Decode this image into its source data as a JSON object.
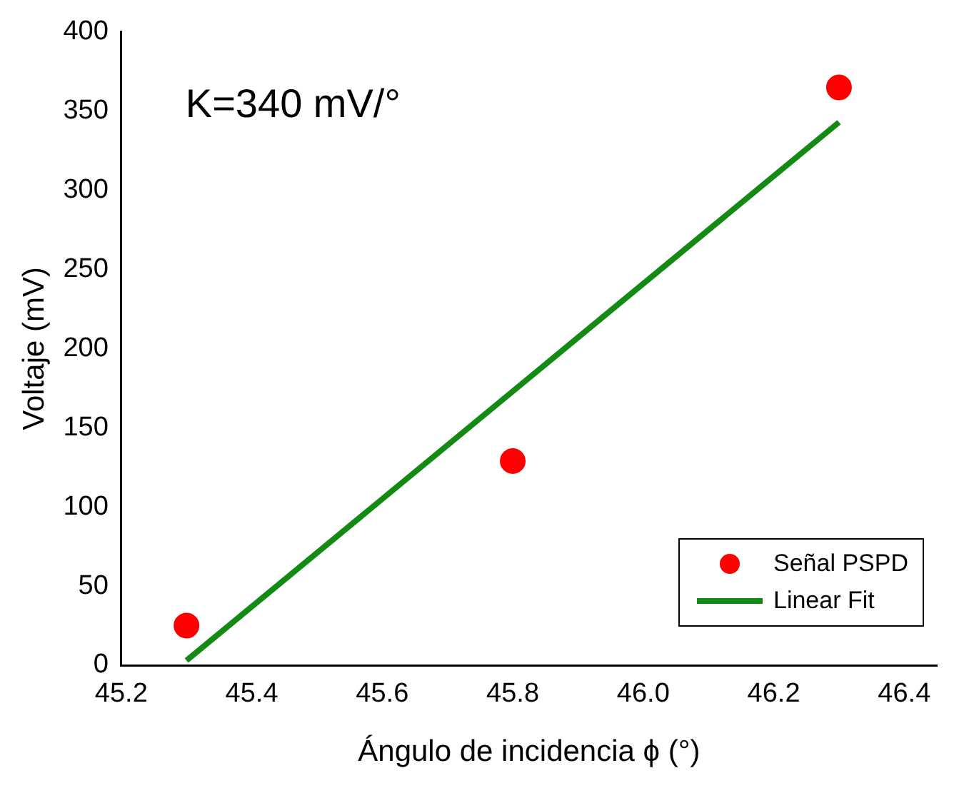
{
  "chart_data": {
    "type": "scatter",
    "xlabel": "Ángulo de incidencia ϕ (°)",
    "ylabel": "Voltaje (mV)",
    "annotations": [
      "K=340 mV/°"
    ],
    "series": [
      {
        "name": "Señal PSPD",
        "color": "#ff0000",
        "marker": "circle",
        "x": [
          45.3,
          45.8,
          46.3
        ],
        "values": [
          25,
          129,
          365
        ]
      },
      {
        "name": "Linear Fit",
        "type": "line",
        "color": "#138a13",
        "marker": "none",
        "line_style": "solid",
        "x": [
          45.3,
          46.3
        ],
        "values": [
          3,
          343
        ]
      }
    ],
    "xlim": [
      45.2,
      46.45
    ],
    "xticks": [
      45.2,
      45.4,
      45.6,
      45.8,
      {
        "value": 46,
        "label": "46.0"
      },
      46.2,
      46.4
    ],
    "ylim": [
      0,
      400
    ],
    "yticks": [
      0,
      50,
      100,
      150,
      200,
      250,
      300,
      350,
      400
    ],
    "grid": false,
    "legend": "bottom right"
  }
}
